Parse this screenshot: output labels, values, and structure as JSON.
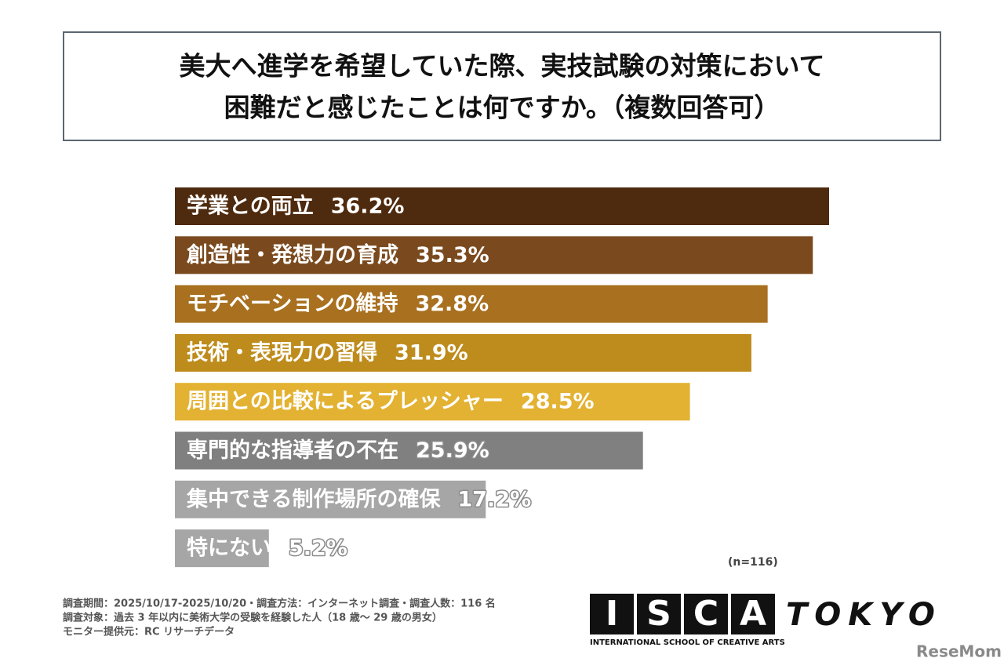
{
  "chart_data": {
    "type": "bar",
    "title": [
      "美大へ進学を希望していた際、実技試験の対策において",
      "困難だと感じたことは何ですか。（複数回答可）"
    ],
    "categories": [
      "学業との両立",
      "創造性・発想力の育成",
      "モチベーションの維持",
      "技術・表現力の習得",
      "周囲との比較によるプレッシャー",
      "専門的な指導者の不在",
      "集中できる制作場所の確保",
      "特にない"
    ],
    "values": [
      36.2,
      35.3,
      32.8,
      31.9,
      28.5,
      25.9,
      17.2,
      5.2
    ],
    "value_labels": [
      "36.2%",
      "35.3%",
      "32.8%",
      "31.9%",
      "28.5%",
      "25.9%",
      "17.2%",
      "5.2%"
    ],
    "colors": [
      "#4e2a0e",
      "#7a4a1e",
      "#a8701f",
      "#be8c1c",
      "#e3b232",
      "#808080",
      "#a6a6a6",
      "#a6a6a6"
    ],
    "sample_size": "(n=116)",
    "notes": [
      "調査期間：2025/10/17-2025/10/20・調査方法：インターネット調査・調査人数：116 名",
      "調査対象：過去 3 年以内に美術大学の受験を経験した人（18 歳～ 29 歳の男女）",
      "モニター提供元：RC リサーチデータ"
    ]
  },
  "logo": {
    "letters": [
      "I",
      "S",
      "C",
      "A"
    ],
    "city": "TOKYO",
    "tagline": "INTERNATIONAL SCHOOL OF CREATIVE ARTS",
    "source": "ReseMom"
  }
}
